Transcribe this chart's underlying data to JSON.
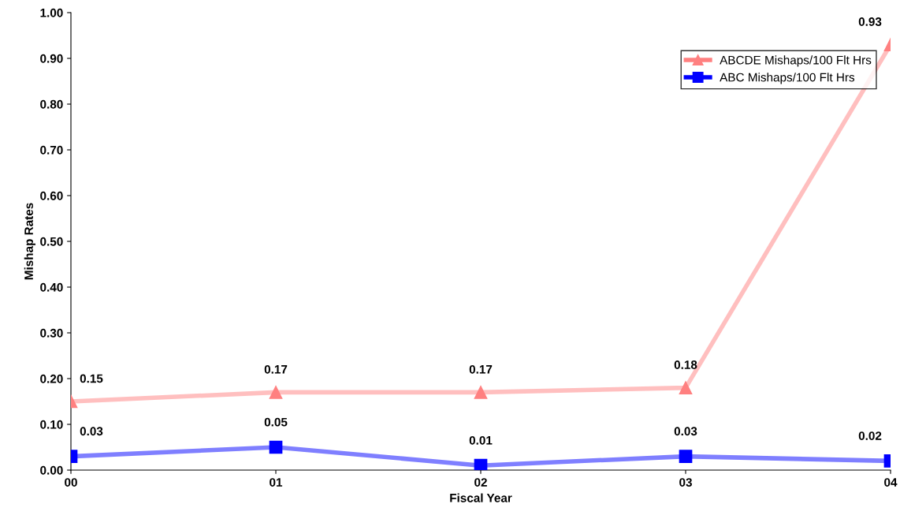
{
  "chart_data": {
    "type": "line",
    "xlabel": "Fiscal Year",
    "ylabel": "Mishap Rates",
    "categories": [
      "00",
      "01",
      "02",
      "03",
      "04"
    ],
    "series": [
      {
        "name": "ABCDE Mishaps/100 Flt Hrs",
        "color": "#ff8080",
        "marker": "triangle",
        "values": [
          0.15,
          0.17,
          0.17,
          0.18,
          0.93
        ]
      },
      {
        "name": "ABC Mishaps/100 Flt Hrs",
        "color": "#0000ff",
        "marker": "square",
        "values": [
          0.03,
          0.05,
          0.01,
          0.03,
          0.02
        ]
      }
    ],
    "ylim": [
      0,
      1
    ],
    "yticks": [
      {
        "value": 0,
        "label": "0.00"
      },
      {
        "value": 0.1,
        "label": "0.10"
      },
      {
        "value": 0.2,
        "label": "0.20"
      },
      {
        "value": 0.3,
        "label": "0.30"
      },
      {
        "value": 0.4,
        "label": "0.40"
      },
      {
        "value": 0.5,
        "label": "0.50"
      },
      {
        "value": 0.6,
        "label": "0.60"
      },
      {
        "value": 0.7,
        "label": "0.70"
      },
      {
        "value": 0.8,
        "label": "0.80"
      },
      {
        "value": 0.9,
        "label": "0.90"
      },
      {
        "value": 1,
        "label": "1.00"
      }
    ],
    "data_labels": true,
    "legend": "top right",
    "grid": false,
    "line_style": "solid"
  }
}
